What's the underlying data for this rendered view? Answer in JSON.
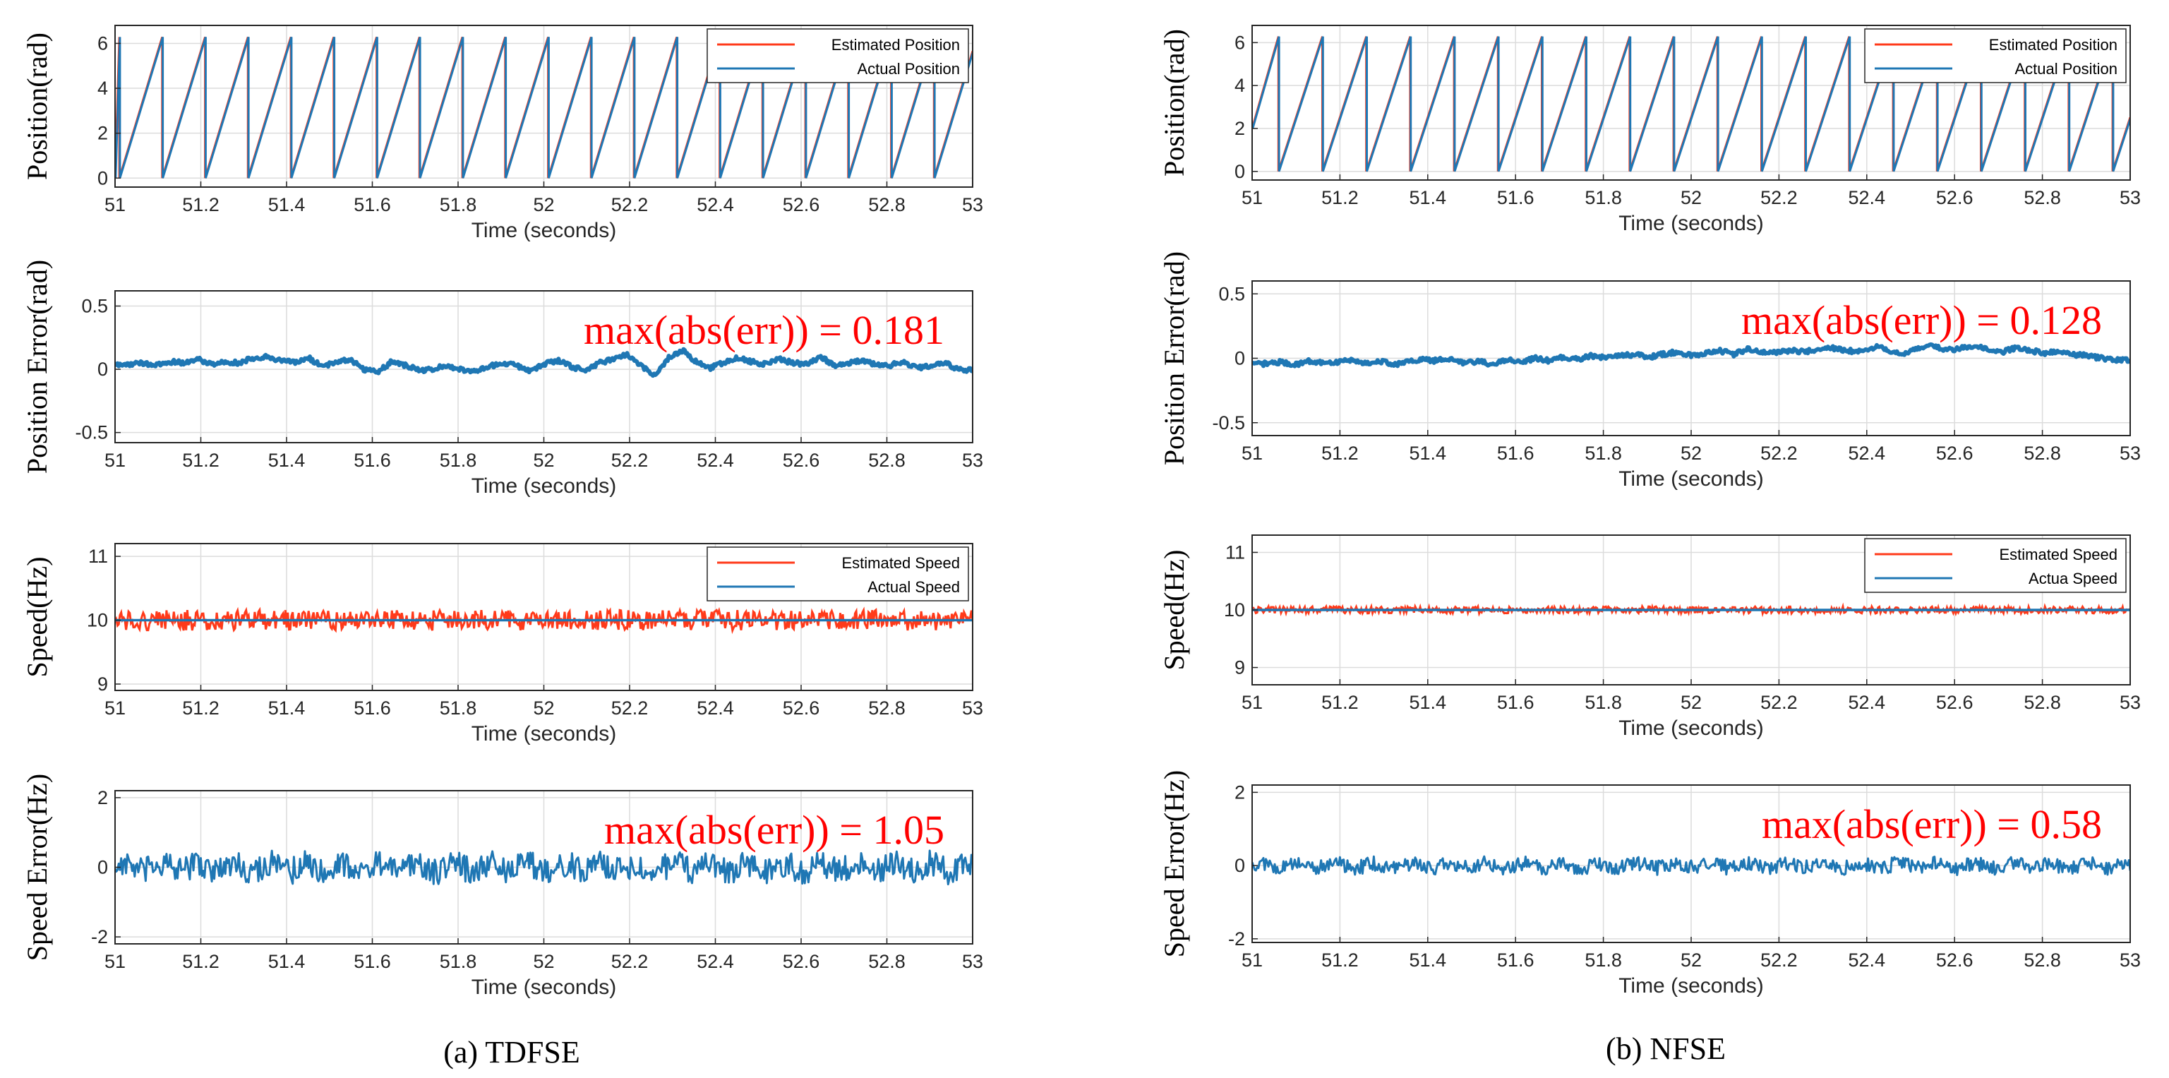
{
  "colors": {
    "estimated": "#ff3a1a",
    "actual": "#1f77b4",
    "annotation": "#ff0000"
  },
  "figure": {
    "panels": [
      {
        "caption": "(a) TDFSE",
        "method": "TDFSE"
      },
      {
        "caption": "(b) NFSE",
        "method": "NFSE"
      }
    ]
  },
  "chart_data": [
    {
      "id": "a-pos",
      "type": "line",
      "panel": 0,
      "kind": "position",
      "xlabel": "Time (seconds)",
      "ylabel": "Position(rad)",
      "xlim": [
        51,
        53
      ],
      "ylim": [
        -0.4,
        6.8
      ],
      "xticks": [
        51,
        51.2,
        51.4,
        51.6,
        51.8,
        52,
        52.2,
        52.4,
        52.6,
        52.8,
        53
      ],
      "xtick_labels": [
        "51",
        "51.2",
        "51.4",
        "51.6",
        "51.8",
        "52",
        "52.2",
        "52.4",
        "52.6",
        "52.8",
        "53"
      ],
      "yticks": [
        0,
        2,
        4,
        6
      ],
      "ytick_labels": [
        "0",
        "2",
        "4",
        "6"
      ],
      "frequency_hz": 10,
      "phase_s": 0.01,
      "amplitude": 6.2832,
      "top_drop_until": 52.34,
      "legend": [
        "Estimated Position",
        "Actual Position"
      ],
      "legend_loc": "top-right",
      "series": [
        {
          "name": "Estimated Position"
        },
        {
          "name": "Actual Position"
        }
      ]
    },
    {
      "id": "a-poserr",
      "type": "line",
      "panel": 0,
      "kind": "noise",
      "xlabel": "Time (seconds)",
      "ylabel": "Position Error(rad)",
      "xlim": [
        51,
        53
      ],
      "ylim": [
        -0.58,
        0.62
      ],
      "xticks": [
        51,
        51.2,
        51.4,
        51.6,
        51.8,
        52,
        52.2,
        52.4,
        52.6,
        52.8,
        53
      ],
      "xtick_labels": [
        "51",
        "51.2",
        "51.4",
        "51.6",
        "51.8",
        "52",
        "52.2",
        "52.4",
        "52.6",
        "52.8",
        "53"
      ],
      "yticks": [
        -0.5,
        0,
        0.5
      ],
      "ytick_labels": [
        "-0.5",
        "0",
        "0.5"
      ],
      "annotation": "max(abs(err)) = 0.181",
      "max_abs_err": 0.181,
      "samples": [
        0.03,
        0.04,
        0.05,
        0.03,
        0.06,
        0.05,
        0.08,
        0.04,
        0.06,
        0.05,
        0.09,
        0.1,
        0.07,
        0.05,
        0.09,
        0.02,
        0.06,
        0.08,
        0.0,
        -0.02,
        0.06,
        0.03,
        -0.01,
        0.0,
        0.03,
        0.0,
        -0.02,
        0.02,
        0.05,
        0.03,
        -0.01,
        0.04,
        0.07,
        0.02,
        -0.01,
        0.05,
        0.08,
        0.12,
        0.03,
        -0.05,
        0.09,
        0.15,
        0.06,
        0.01,
        0.05,
        0.09,
        0.06,
        0.04,
        0.08,
        0.05,
        0.04,
        0.1,
        0.03,
        0.05,
        0.07,
        0.04,
        0.03,
        0.06,
        0.01,
        0.03,
        0.05,
        0.0,
        -0.01
      ]
    },
    {
      "id": "a-speed",
      "type": "line",
      "panel": 0,
      "kind": "speed",
      "xlabel": "Time (seconds)",
      "ylabel": "Speed(Hz)",
      "xlim": [
        51,
        53
      ],
      "ylim": [
        8.9,
        11.2
      ],
      "xticks": [
        51,
        51.2,
        51.4,
        51.6,
        51.8,
        52,
        52.2,
        52.4,
        52.6,
        52.8,
        53
      ],
      "xtick_labels": [
        "51",
        "51.2",
        "51.4",
        "51.6",
        "51.8",
        "52",
        "52.2",
        "52.4",
        "52.6",
        "52.8",
        "53"
      ],
      "yticks": [
        9,
        10,
        11
      ],
      "ytick_labels": [
        "9",
        "10",
        "11"
      ],
      "legend": [
        "Estimated Speed",
        "Actual Speed"
      ],
      "legend_loc": "top-right",
      "actual_value": 10,
      "noise_amplitude": 0.16,
      "series": [
        {
          "name": "Estimated Speed"
        },
        {
          "name": "Actual Speed"
        }
      ]
    },
    {
      "id": "a-spderr",
      "type": "line",
      "panel": 0,
      "kind": "noise",
      "xlabel": "Time (seconds)",
      "ylabel": "Speed Error(Hz)",
      "xlim": [
        51,
        53
      ],
      "ylim": [
        -2.2,
        2.2
      ],
      "xticks": [
        51,
        51.2,
        51.4,
        51.6,
        51.8,
        52,
        52.2,
        52.4,
        52.6,
        52.8,
        53
      ],
      "xtick_labels": [
        "51",
        "51.2",
        "51.4",
        "51.6",
        "51.8",
        "52",
        "52.2",
        "52.4",
        "52.6",
        "52.8",
        "53"
      ],
      "yticks": [
        -2,
        0,
        2
      ],
      "ytick_labels": [
        "-2",
        "0",
        "2"
      ],
      "annotation": "max(abs(err)) = 1.05",
      "max_abs_err": 1.05,
      "noise_amplitude": 0.38
    },
    {
      "id": "b-pos",
      "type": "line",
      "panel": 1,
      "kind": "position",
      "xlabel": "Time (seconds)",
      "ylabel": "Position(rad)",
      "xlim": [
        51,
        53
      ],
      "ylim": [
        -0.4,
        6.8
      ],
      "xticks": [
        51,
        51.2,
        51.4,
        51.6,
        51.8,
        52,
        52.2,
        52.4,
        52.6,
        52.8,
        53
      ],
      "xtick_labels": [
        "51",
        "51.2",
        "51.4",
        "51.6",
        "51.8",
        "52",
        "52.2",
        "52.4",
        "52.6",
        "52.8",
        "53"
      ],
      "yticks": [
        0,
        2,
        4,
        6
      ],
      "ytick_labels": [
        "0",
        "2",
        "4",
        "6"
      ],
      "frequency_hz": 10,
      "phase_s": 0.06,
      "amplitude": 6.2832,
      "start_value": 2.0,
      "top_drop_until": 52.4,
      "legend": [
        "Estimated Position",
        "Actual Position"
      ],
      "legend_loc": "top-right",
      "series": [
        {
          "name": "Estimated Position"
        },
        {
          "name": "Actual Position"
        }
      ]
    },
    {
      "id": "b-poserr",
      "type": "line",
      "panel": 1,
      "kind": "noise",
      "xlabel": "Time (seconds)",
      "ylabel": "Position Error(rad)",
      "xlim": [
        51,
        53
      ],
      "ylim": [
        -0.6,
        0.6
      ],
      "xticks": [
        51,
        51.2,
        51.4,
        51.6,
        51.8,
        52,
        52.2,
        52.4,
        52.6,
        52.8,
        53
      ],
      "xtick_labels": [
        "51",
        "51.2",
        "51.4",
        "51.6",
        "51.8",
        "52",
        "52.2",
        "52.4",
        "52.6",
        "52.8",
        "53"
      ],
      "yticks": [
        -0.5,
        0,
        0.5
      ],
      "ytick_labels": [
        "-0.5",
        "0",
        "0.5"
      ],
      "annotation": "max(abs(err)) = 0.128",
      "max_abs_err": 0.128,
      "samples": [
        -0.05,
        -0.04,
        -0.03,
        -0.05,
        -0.02,
        -0.04,
        -0.03,
        -0.01,
        -0.04,
        -0.02,
        -0.05,
        -0.03,
        -0.01,
        -0.02,
        0.0,
        -0.04,
        -0.02,
        -0.05,
        -0.01,
        -0.03,
        0.0,
        -0.02,
        0.01,
        -0.01,
        0.02,
        0.0,
        0.02,
        0.03,
        0.01,
        0.03,
        0.05,
        0.02,
        0.04,
        0.06,
        0.03,
        0.07,
        0.05,
        0.04,
        0.06,
        0.05,
        0.07,
        0.08,
        0.06,
        0.05,
        0.09,
        0.06,
        0.04,
        0.07,
        0.11,
        0.06,
        0.08,
        0.09,
        0.07,
        0.05,
        0.08,
        0.06,
        0.04,
        0.05,
        0.03,
        0.02,
        0.0,
        -0.01,
        -0.02
      ]
    },
    {
      "id": "b-speed",
      "type": "line",
      "panel": 1,
      "kind": "speed",
      "xlabel": "Time (seconds)",
      "ylabel": "Speed(Hz)",
      "xlim": [
        51,
        53
      ],
      "ylim": [
        8.7,
        11.3
      ],
      "xticks": [
        51,
        51.2,
        51.4,
        51.6,
        51.8,
        52,
        52.2,
        52.4,
        52.6,
        52.8,
        53
      ],
      "xtick_labels": [
        "51",
        "51.2",
        "51.4",
        "51.6",
        "51.8",
        "52",
        "52.2",
        "52.4",
        "52.6",
        "52.8",
        "53"
      ],
      "yticks": [
        9,
        10,
        11
      ],
      "ytick_labels": [
        "9",
        "10",
        "11"
      ],
      "legend": [
        "Estimated Speed",
        "Actua Speed"
      ],
      "legend_loc": "top-right",
      "actual_value": 10,
      "noise_amplitude": 0.06,
      "series": [
        {
          "name": "Estimated Speed"
        },
        {
          "name": "Actua Speed"
        }
      ]
    },
    {
      "id": "b-spderr",
      "type": "line",
      "panel": 1,
      "kind": "noise",
      "xlabel": "Time (seconds)",
      "ylabel": "Speed Error(Hz)",
      "xlim": [
        51,
        53
      ],
      "ylim": [
        -2.1,
        2.2
      ],
      "xticks": [
        51,
        51.2,
        51.4,
        51.6,
        51.8,
        52,
        52.2,
        52.4,
        52.6,
        52.8,
        53
      ],
      "xtick_labels": [
        "51",
        "51.2",
        "51.4",
        "51.6",
        "51.8",
        "52",
        "52.2",
        "52.4",
        "52.6",
        "52.8",
        "53"
      ],
      "yticks": [
        -2,
        0,
        2
      ],
      "ytick_labels": [
        "-2",
        "0",
        "2"
      ],
      "annotation": "max(abs(err)) = 0.58",
      "max_abs_err": 0.58,
      "noise_amplitude": 0.2
    }
  ]
}
